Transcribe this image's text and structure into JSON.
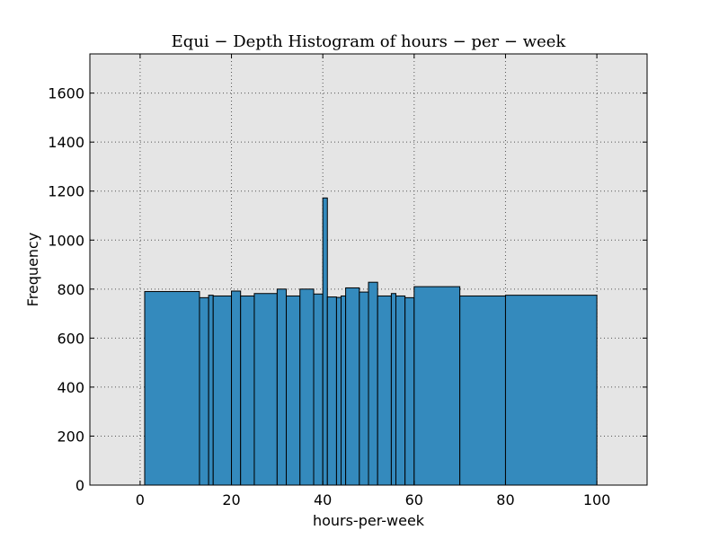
{
  "chart_data": {
    "type": "bar",
    "title": "Equi − Depth Histogram of hours − per − week",
    "xlabel": "hours-per-week",
    "ylabel": "Frequency",
    "xlim": [
      -11,
      111
    ],
    "ylim": [
      0,
      1760
    ],
    "xticks": [
      0,
      20,
      40,
      60,
      80,
      100
    ],
    "yticks": [
      0,
      200,
      400,
      600,
      800,
      1000,
      1200,
      1400,
      1600
    ],
    "grid": true,
    "legend": "none",
    "bins": [
      {
        "x0": 1,
        "x1": 13,
        "value": 790
      },
      {
        "x0": 13,
        "x1": 15,
        "value": 765
      },
      {
        "x0": 15,
        "x1": 16,
        "value": 775
      },
      {
        "x0": 16,
        "x1": 20,
        "value": 772
      },
      {
        "x0": 20,
        "x1": 22,
        "value": 792
      },
      {
        "x0": 22,
        "x1": 25,
        "value": 772
      },
      {
        "x0": 25,
        "x1": 30,
        "value": 782
      },
      {
        "x0": 30,
        "x1": 32,
        "value": 800
      },
      {
        "x0": 32,
        "x1": 35,
        "value": 772
      },
      {
        "x0": 35,
        "x1": 38,
        "value": 800
      },
      {
        "x0": 38,
        "x1": 40,
        "value": 780
      },
      {
        "x0": 40,
        "x1": 41,
        "value": 1172
      },
      {
        "x0": 41,
        "x1": 43,
        "value": 768
      },
      {
        "x0": 43,
        "x1": 44,
        "value": 766
      },
      {
        "x0": 44,
        "x1": 45,
        "value": 772
      },
      {
        "x0": 45,
        "x1": 48,
        "value": 805
      },
      {
        "x0": 48,
        "x1": 50,
        "value": 788
      },
      {
        "x0": 50,
        "x1": 52,
        "value": 828
      },
      {
        "x0": 52,
        "x1": 55,
        "value": 772
      },
      {
        "x0": 55,
        "x1": 56,
        "value": 782
      },
      {
        "x0": 56,
        "x1": 58,
        "value": 772
      },
      {
        "x0": 58,
        "x1": 60,
        "value": 765
      },
      {
        "x0": 60,
        "x1": 70,
        "value": 810
      },
      {
        "x0": 70,
        "x1": 80,
        "value": 772
      },
      {
        "x0": 80,
        "x1": 100,
        "value": 775
      }
    ],
    "colors": {
      "bar_fill": "#348abd",
      "bar_edge": "#000000",
      "plot_background": "#e5e5e5",
      "grid": "#555555"
    }
  }
}
